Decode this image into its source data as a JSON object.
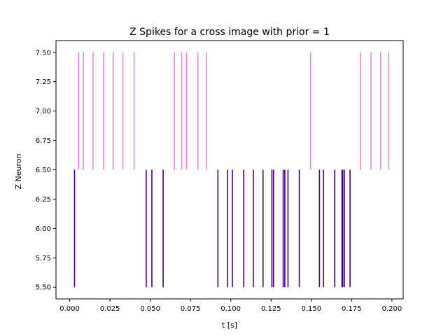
{
  "chart_data": {
    "type": "eventplot",
    "title": "Z Spikes for a cross image with prior = 1",
    "xlabel": "t [s]",
    "ylabel": "Z Neuron",
    "xlim": [
      -0.0085,
      0.207
    ],
    "ylim": [
      5.4,
      7.6
    ],
    "x_ticks": [
      0.0,
      0.025,
      0.05,
      0.075,
      0.1,
      0.125,
      0.15,
      0.175,
      0.2
    ],
    "x_tick_labels": [
      "0.000",
      "0.025",
      "0.050",
      "0.075",
      "0.100",
      "0.125",
      "0.150",
      "0.175",
      "0.200"
    ],
    "y_ticks": [
      5.5,
      5.75,
      6.0,
      6.25,
      6.5,
      6.75,
      7.0,
      7.25,
      7.5
    ],
    "y_tick_labels": [
      "5.50",
      "5.75",
      "6.00",
      "6.25",
      "6.50",
      "6.75",
      "7.00",
      "7.25",
      "7.50"
    ],
    "grid": false,
    "series": [
      {
        "lineoffset": 6,
        "linelength": 1,
        "color": "#4b0082",
        "events": [
          0.003,
          0.0475,
          0.051,
          0.058,
          0.092,
          0.098,
          0.101,
          0.108,
          0.114,
          0.12,
          0.1255,
          0.1265,
          0.1325,
          0.1335,
          0.1355,
          0.1425,
          0.155,
          0.1575,
          0.1645,
          0.169,
          0.1695,
          0.1705,
          0.174
        ]
      },
      {
        "lineoffset": 7,
        "linelength": 1,
        "color": "#ee82ee",
        "events": [
          0.0055,
          0.0085,
          0.0145,
          0.021,
          0.027,
          0.033,
          0.04,
          0.065,
          0.0695,
          0.0725,
          0.0795,
          0.085,
          0.1495,
          0.1805,
          0.187,
          0.193,
          0.198
        ]
      }
    ]
  }
}
